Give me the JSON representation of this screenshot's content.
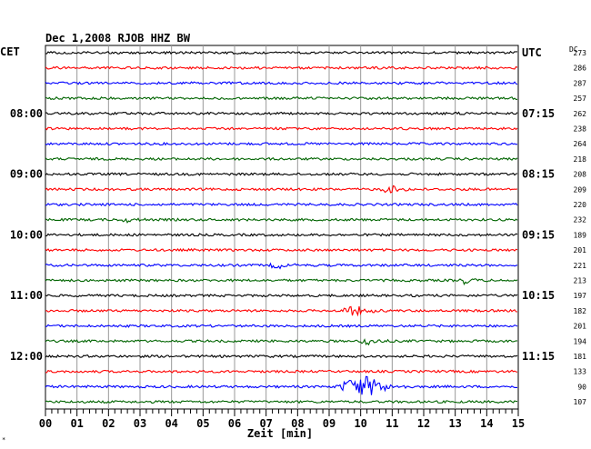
{
  "header": {
    "title": "Dec 1,2008   RJOB HHZ BW",
    "left_timezone": "CET",
    "right_timezone": "UTC",
    "dc_label": "DC"
  },
  "chart_data": {
    "type": "line",
    "x_label": "Zeit [min]",
    "x_range": [
      0,
      15
    ],
    "x_ticks": [
      "00",
      "01",
      "02",
      "03",
      "04",
      "05",
      "06",
      "07",
      "08",
      "09",
      "10",
      "11",
      "12",
      "13",
      "14",
      "15"
    ],
    "grid": "vertical",
    "trace_colors": [
      "#000000",
      "#ff0000",
      "#0000ff",
      "#006400"
    ],
    "left_hour_labels": [
      {
        "row": 4,
        "label": "08:00"
      },
      {
        "row": 8,
        "label": "09:00"
      },
      {
        "row": 12,
        "label": "10:00"
      },
      {
        "row": 16,
        "label": "11:00"
      },
      {
        "row": 20,
        "label": "12:00"
      }
    ],
    "right_hour_labels": [
      {
        "row": 0,
        "label": "UTC"
      },
      {
        "row": 4,
        "label": "07:15"
      },
      {
        "row": 8,
        "label": "08:15"
      },
      {
        "row": 12,
        "label": "09:15"
      },
      {
        "row": 16,
        "label": "10:15"
      },
      {
        "row": 20,
        "label": "11:15"
      }
    ],
    "dc_values": [
      "273",
      "286",
      "287",
      "257",
      "262",
      "238",
      "264",
      "218",
      "208",
      "209",
      "220",
      "232",
      "189",
      "201",
      "221",
      "213",
      "197",
      "182",
      "201",
      "194",
      "181",
      "133",
      "90",
      "107"
    ],
    "events": [
      {
        "row": 9,
        "start_min": 10.6,
        "end_min": 11.3,
        "amp": 3
      },
      {
        "row": 11,
        "start_min": 2.4,
        "end_min": 2.8,
        "amp": 2
      },
      {
        "row": 14,
        "start_min": 7.1,
        "end_min": 7.6,
        "amp": 3
      },
      {
        "row": 15,
        "start_min": 13.1,
        "end_min": 13.5,
        "amp": 3
      },
      {
        "row": 17,
        "start_min": 9.3,
        "end_min": 10.3,
        "amp": 4
      },
      {
        "row": 19,
        "start_min": 10.0,
        "end_min": 10.4,
        "amp": 5
      },
      {
        "row": 22,
        "start_min": 9.2,
        "end_min": 11.0,
        "amp": 10
      }
    ]
  }
}
